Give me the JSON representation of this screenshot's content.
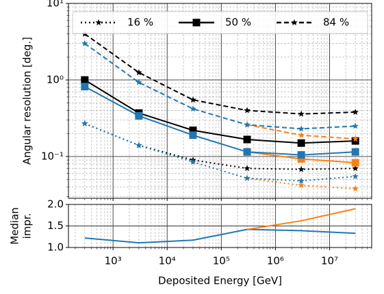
{
  "chart_data": [
    {
      "type": "line",
      "ylabel": "Angular resolution [deg.]",
      "xscale": "log",
      "yscale": "log",
      "xlim": [
        150,
        60000000
      ],
      "ylim": [
        0.0285,
        10
      ],
      "yticks": [
        {
          "value": 0.1,
          "label": "10⁻¹"
        },
        {
          "value": 1,
          "label": "10⁰"
        },
        {
          "value": 10,
          "label": "10¹"
        }
      ],
      "grid": true,
      "minor_grid": true,
      "sharex": true,
      "legend": "top",
      "series": [
        {
          "name": "16 %",
          "color": "#000000",
          "linestyle": "dotted",
          "marker": "star",
          "x": [
            300,
            3000,
            30000,
            300000,
            3000000,
            30000000
          ],
          "values": [
            0.27,
            0.14,
            0.09,
            0.07,
            0.068,
            0.07
          ]
        },
        {
          "name": "50 %",
          "color": "#000000",
          "linestyle": "solid",
          "marker": "square",
          "x": [
            300,
            3000,
            30000,
            300000,
            3000000,
            30000000
          ],
          "values": [
            1.0,
            0.37,
            0.22,
            0.167,
            0.15,
            0.16
          ]
        },
        {
          "name": "84 %",
          "color": "#000000",
          "linestyle": "dashed",
          "marker": "star",
          "x": [
            300,
            3000,
            30000,
            300000,
            3000000,
            30000000
          ],
          "values": [
            4.0,
            1.25,
            0.55,
            0.4,
            0.36,
            0.38
          ]
        },
        {
          "color": "#ff7f0e",
          "linestyle": "dotted",
          "marker": "star",
          "x": [
            300000,
            3000000,
            30000000
          ],
          "values": [
            0.052,
            0.042,
            0.038
          ]
        },
        {
          "color": "#ff7f0e",
          "linestyle": "solid",
          "marker": "square",
          "x": [
            300000,
            3000000,
            30000000
          ],
          "values": [
            0.115,
            0.093,
            0.083
          ]
        },
        {
          "color": "#ff7f0e",
          "linestyle": "dashed",
          "marker": "star",
          "x": [
            300000,
            3000000,
            30000000
          ],
          "values": [
            0.26,
            0.19,
            0.17
          ]
        },
        {
          "color": "#1f77b4",
          "linestyle": "dotted",
          "marker": "star",
          "x": [
            300,
            3000,
            30000,
            300000,
            3000000,
            30000000
          ],
          "values": [
            0.27,
            0.14,
            0.085,
            0.052,
            0.048,
            0.055
          ]
        },
        {
          "color": "#1f77b4",
          "linestyle": "solid",
          "marker": "square",
          "x": [
            300,
            3000,
            30000,
            300000,
            3000000,
            30000000
          ],
          "values": [
            0.82,
            0.34,
            0.19,
            0.115,
            0.105,
            0.115
          ]
        },
        {
          "color": "#1f77b4",
          "linestyle": "dashed",
          "marker": "star",
          "x": [
            300,
            3000,
            30000,
            300000,
            3000000,
            30000000
          ],
          "values": [
            3.0,
            0.93,
            0.42,
            0.26,
            0.23,
            0.25
          ]
        }
      ]
    },
    {
      "type": "line",
      "ylabel": [
        "Median",
        "impr."
      ],
      "xlabel": "Deposited Energy [GeV]",
      "xscale": "log",
      "xlim": [
        150,
        60000000
      ],
      "ylim": [
        1.0,
        2.0
      ],
      "xticks": [
        {
          "value": 1000,
          "label": "10³"
        },
        {
          "value": 10000,
          "label": "10⁴"
        },
        {
          "value": 100000,
          "label": "10⁵"
        },
        {
          "value": 1000000,
          "label": "10⁶"
        },
        {
          "value": 10000000,
          "label": "10⁷"
        }
      ],
      "yticks": [
        {
          "value": 1,
          "label": "1.0"
        },
        1.5,
        {
          "value": 2,
          "label": "2.0"
        }
      ],
      "grid": true,
      "minor_grid": true,
      "series": [
        {
          "color": "#1f77b4",
          "linestyle": "solid",
          "x": [
            300,
            3000,
            30000,
            300000,
            3000000,
            30000000
          ],
          "values": [
            1.22,
            1.11,
            1.17,
            1.42,
            1.39,
            1.33
          ]
        },
        {
          "color": "#ff7f0e",
          "linestyle": "solid",
          "x": [
            300000,
            3000000,
            30000000
          ],
          "values": [
            1.42,
            1.62,
            1.9
          ]
        }
      ]
    }
  ]
}
